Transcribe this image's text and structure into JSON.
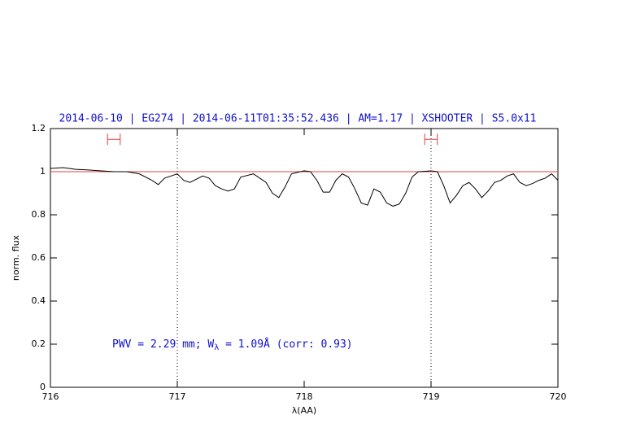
{
  "chart_data": {
    "type": "line",
    "title": "2014-06-10 | EG274 | 2014-06-11T01:35:52.436 | AM=1.17 | XSHOOTER | S5.0x11",
    "xlabel": "λ(AA)",
    "ylabel": "norm. flux",
    "annotation": [
      "PWV = 2.29 mm; W",
      "λ",
      " = 1.09Å (corr: 0.93)"
    ],
    "x": [
      716.0,
      716.1,
      716.2,
      716.3,
      716.4,
      716.5,
      716.6,
      716.7,
      716.8,
      716.85,
      716.9,
      717.0,
      717.05,
      717.1,
      717.2,
      717.25,
      717.3,
      717.35,
      717.4,
      717.45,
      717.5,
      717.6,
      717.7,
      717.75,
      717.8,
      717.85,
      717.9,
      718.0,
      718.05,
      718.1,
      718.15,
      718.2,
      718.25,
      718.3,
      718.35,
      718.4,
      718.45,
      718.5,
      718.55,
      718.6,
      718.65,
      718.7,
      718.75,
      718.8,
      718.85,
      718.9,
      719.0,
      719.05,
      719.1,
      719.15,
      719.2,
      719.25,
      719.3,
      719.35,
      719.4,
      719.45,
      719.5,
      719.55,
      719.6,
      719.65,
      719.7,
      719.75,
      719.8,
      719.85,
      719.9,
      719.95,
      720.0
    ],
    "series": [
      {
        "name": "flux",
        "color": "#000000",
        "values": [
          1.015,
          1.019,
          1.011,
          1.008,
          1.004,
          1.0,
          1.0,
          0.99,
          0.96,
          0.94,
          0.97,
          0.99,
          0.96,
          0.95,
          0.98,
          0.97,
          0.935,
          0.92,
          0.91,
          0.92,
          0.975,
          0.99,
          0.95,
          0.9,
          0.88,
          0.93,
          0.99,
          1.004,
          1.0,
          0.96,
          0.905,
          0.905,
          0.96,
          0.99,
          0.975,
          0.92,
          0.855,
          0.845,
          0.92,
          0.905,
          0.855,
          0.84,
          0.85,
          0.9,
          0.975,
          1.0,
          1.004,
          1.0,
          0.935,
          0.855,
          0.89,
          0.935,
          0.95,
          0.92,
          0.88,
          0.91,
          0.95,
          0.96,
          0.98,
          0.99,
          0.95,
          0.935,
          0.945,
          0.96,
          0.97,
          0.99,
          0.96
        ]
      }
    ],
    "reference_line": 1,
    "reference_color": "#e04040",
    "vlines": [
      717,
      719
    ],
    "markers": [
      {
        "xmin": 716.45,
        "xmax": 716.55,
        "y": 1.15
      },
      {
        "xmin": 718.95,
        "xmax": 719.05,
        "y": 1.15
      }
    ],
    "marker_color": "#e04040",
    "xlim": [
      716,
      720
    ],
    "xticks": [
      716,
      717,
      718,
      719,
      720
    ],
    "ylim": [
      0,
      1.2
    ],
    "yticks": [
      0,
      0.2,
      0.4,
      0.6,
      0.8,
      1,
      1.2
    ]
  }
}
